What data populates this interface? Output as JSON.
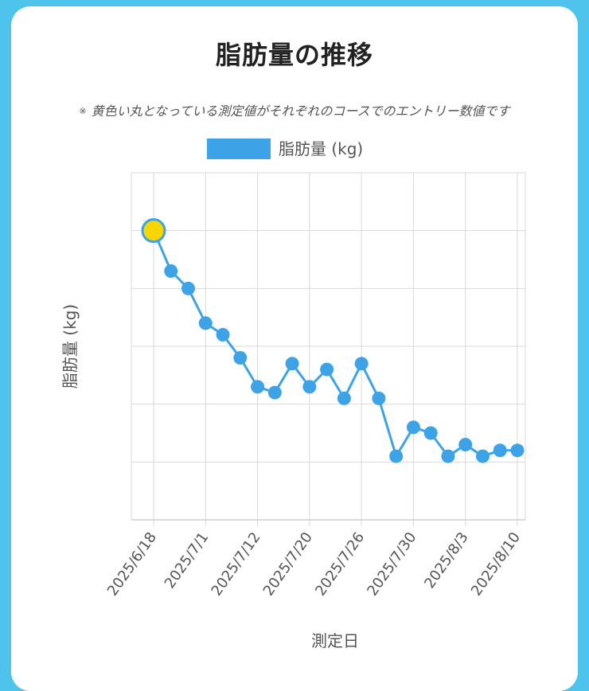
{
  "page": {
    "title": "脂肪量の推移",
    "note_mark": "※",
    "note": "黄色い丸となっている測定値がそれぞれのコースでのエントリー数値です"
  },
  "colors": {
    "series": "#3da2e6",
    "highlight": "#f9d600",
    "highlight_border": "#3da2e6",
    "grid": "#d9d9d9",
    "background": "#4ec3ec"
  },
  "chart_data": {
    "type": "line",
    "title": "脂肪量の推移",
    "xlabel": "測定日",
    "ylabel": "脂肪量 (kg)",
    "legend": "top",
    "grid": true,
    "x_tick_labels": [
      "2025/6/18",
      "2025/7/1",
      "2025/7/12",
      "2025/7/20",
      "2025/7/26",
      "2025/7/30",
      "2025/8/3",
      "2025/8/10"
    ],
    "x_tick_positions": [
      0,
      3,
      6,
      9,
      12,
      15,
      18,
      21
    ],
    "ylim": [
      0,
      6
    ],
    "series": [
      {
        "name": "脂肪量 (kg)",
        "values": [
          5.0,
          4.3,
          4.0,
          3.4,
          3.2,
          2.8,
          2.3,
          2.2,
          2.7,
          2.3,
          2.6,
          2.1,
          2.7,
          2.1,
          1.1,
          1.6,
          1.5,
          1.1,
          1.3,
          1.1,
          1.2,
          1.2
        ],
        "highlight_index": [
          0
        ]
      }
    ]
  }
}
